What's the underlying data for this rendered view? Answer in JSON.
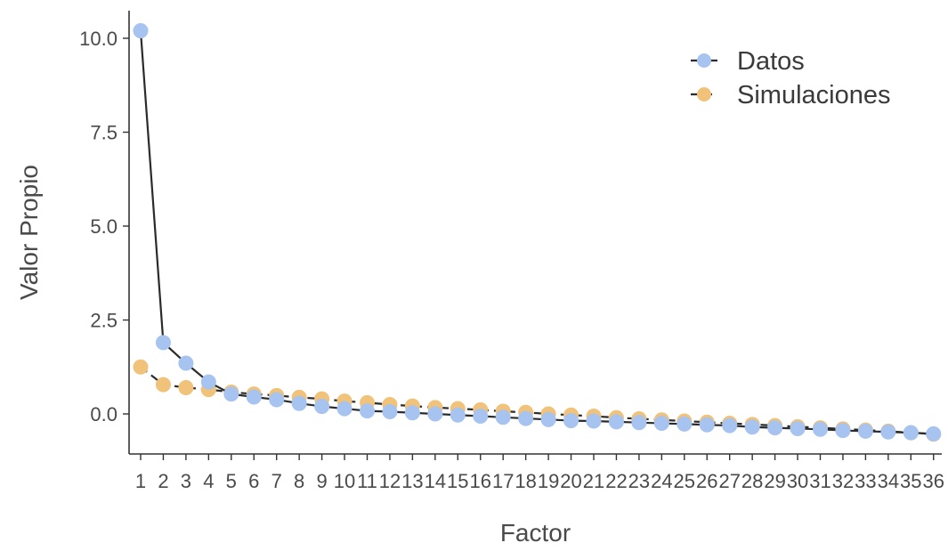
{
  "chart_data": {
    "type": "line",
    "title": "",
    "xlabel": "Factor",
    "ylabel": "Valor Propio",
    "ylim": [
      -0.9,
      10.6
    ],
    "yticks": [
      "0.0",
      "2.5",
      "5.0",
      "7.5",
      "10.0"
    ],
    "ytick_values": [
      0,
      2.5,
      5,
      7.5,
      10
    ],
    "x": [
      1,
      2,
      3,
      4,
      5,
      6,
      7,
      8,
      9,
      10,
      11,
      12,
      13,
      14,
      15,
      16,
      17,
      18,
      19,
      20,
      21,
      22,
      23,
      24,
      25,
      26,
      27,
      28,
      29,
      30,
      31,
      32,
      33,
      34,
      35,
      36
    ],
    "xtick_labels": [
      "1",
      "2",
      "3",
      "4",
      "5",
      "6",
      "7",
      "8",
      "9",
      "10",
      "11",
      "12",
      "13",
      "14",
      "15",
      "16",
      "17",
      "18",
      "19",
      "20",
      "21",
      "22",
      "23",
      "24",
      "25",
      "26",
      "27",
      "28",
      "29",
      "30",
      "31",
      "32",
      "33",
      "34",
      "35",
      "36"
    ],
    "grid": false,
    "legend_position": "top-right",
    "series": [
      {
        "name": "Simulaciones",
        "color": "#f0c27a",
        "line_style": "dashed",
        "values": [
          1.25,
          0.78,
          0.7,
          0.65,
          0.58,
          0.53,
          0.49,
          0.44,
          0.4,
          0.34,
          0.3,
          0.25,
          0.21,
          0.17,
          0.14,
          0.11,
          0.07,
          0.04,
          0.0,
          -0.03,
          -0.06,
          -0.1,
          -0.13,
          -0.16,
          -0.19,
          -0.22,
          -0.25,
          -0.28,
          -0.31,
          -0.34,
          -0.37,
          -0.4,
          -0.43,
          -0.46,
          -0.5,
          -0.54
        ]
      },
      {
        "name": "Datos",
        "color": "#a7c3f0",
        "line_style": "solid",
        "values": [
          10.2,
          1.9,
          1.35,
          0.85,
          0.53,
          0.45,
          0.38,
          0.28,
          0.2,
          0.14,
          0.08,
          0.06,
          0.03,
          0.0,
          -0.03,
          -0.06,
          -0.09,
          -0.12,
          -0.15,
          -0.18,
          -0.19,
          -0.21,
          -0.23,
          -0.25,
          -0.27,
          -0.29,
          -0.31,
          -0.35,
          -0.37,
          -0.39,
          -0.41,
          -0.44,
          -0.46,
          -0.48,
          -0.5,
          -0.53
        ]
      }
    ]
  }
}
